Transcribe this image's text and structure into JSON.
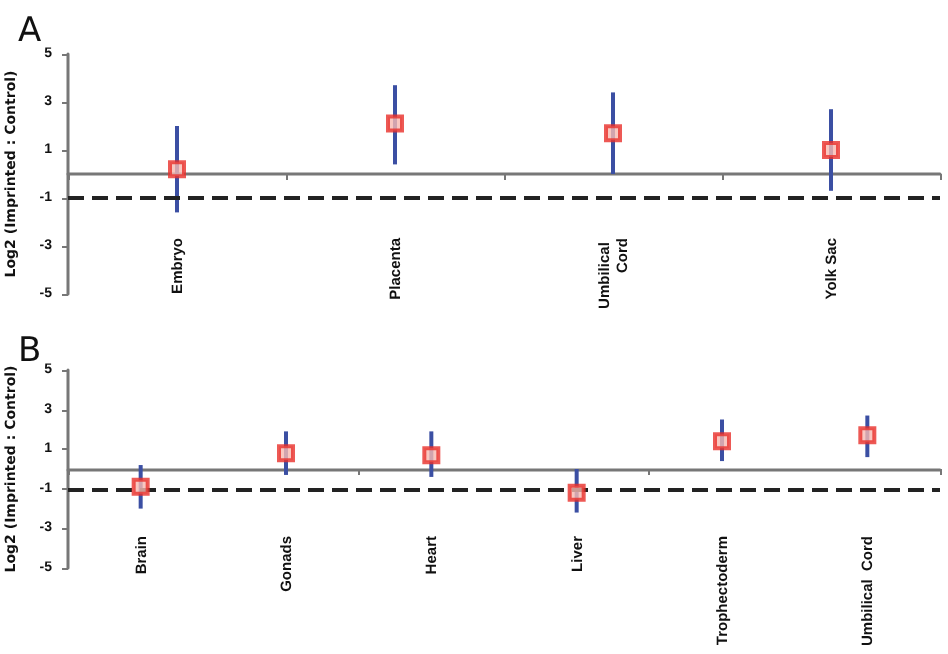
{
  "chart_data": [
    {
      "type": "scatter",
      "title": "A",
      "ylabel": "Log2 (Imprinted : Control)",
      "categories": [
        "Embryo",
        "Placenta",
        "Umbilical Cord",
        "Yolk Sac"
      ],
      "values": [
        0.2,
        2.1,
        1.7,
        1.0
      ],
      "errors": [
        [
          -1.6,
          2.0
        ],
        [
          0.4,
          3.7
        ],
        [
          0,
          3.4
        ],
        [
          -0.7,
          2.7
        ]
      ],
      "color": "#e8302a",
      "marker": "square",
      "ylim": [
        -5,
        5
      ],
      "yticks": [
        -5,
        -3,
        -1,
        1,
        3,
        5
      ],
      "grid": false,
      "ref_lines": [
        {
          "axis": "y",
          "value": -1,
          "line_style": "dashed",
          "color": "#222222"
        }
      ]
    },
    {
      "type": "scatter",
      "title": "B",
      "ylabel": "Log2 (Imprinted : Control)",
      "categories": [
        "Brain",
        "Gonads",
        "Heart",
        "Liver",
        "Trophectoderm",
        "Umbilical  Cord"
      ],
      "values": [
        -0.9,
        0.8,
        0.7,
        -1.2,
        1.4,
        1.7
      ],
      "errors": [
        [
          -2.0,
          0.2
        ],
        [
          -0.3,
          1.9
        ],
        [
          -0.4,
          1.9
        ],
        [
          -2.2,
          0
        ],
        [
          0.4,
          2.5
        ],
        [
          0.6,
          2.7
        ]
      ],
      "color": "#e8302a",
      "marker": "square",
      "ylim": [
        -5,
        5
      ],
      "yticks": [
        -5,
        -3,
        -1,
        1,
        3,
        5
      ],
      "grid": false,
      "ref_lines": [
        {
          "axis": "y",
          "value": -1,
          "line_style": "dashed",
          "color": "#222222"
        }
      ]
    }
  ]
}
